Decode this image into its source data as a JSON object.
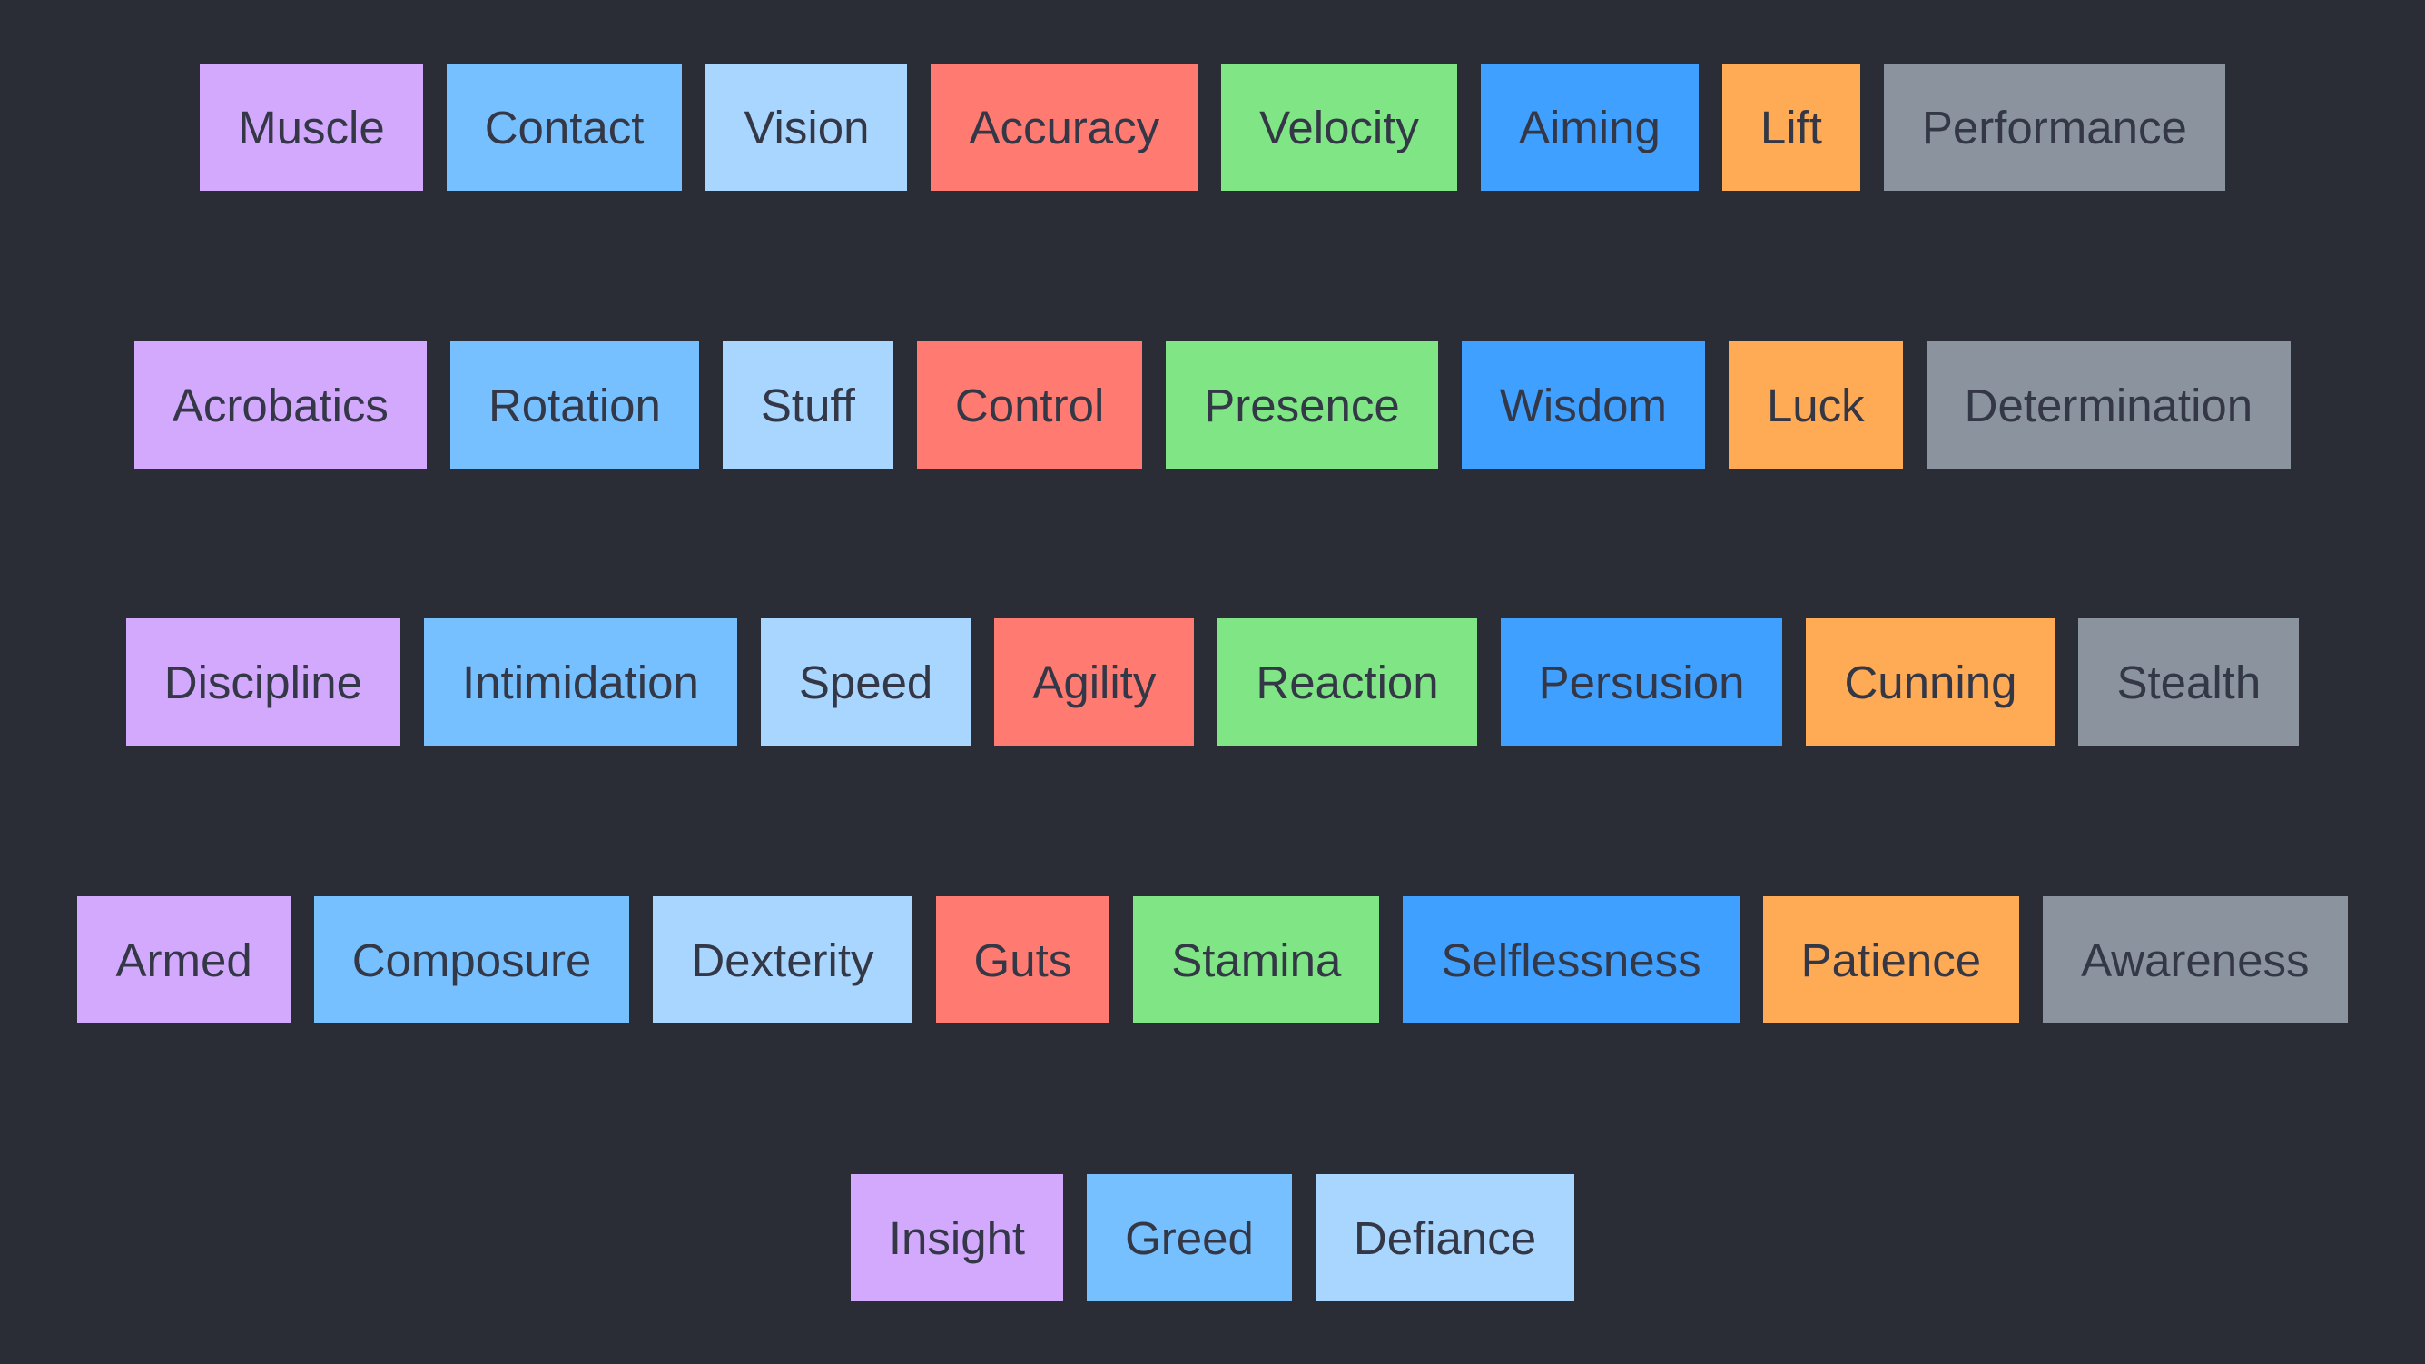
{
  "palette": {
    "background": "#2a2d36",
    "text": "#343846",
    "purple": "#d3a9fe",
    "sky": "#77c0ff",
    "pale-blue": "#a8d6ff",
    "red": "#ff7b72",
    "green": "#7fe585",
    "blue": "#40a0ff",
    "orange": "#ffaa55",
    "gray": "#8b949e"
  },
  "rows": [
    [
      {
        "label": "Muscle",
        "color": "purple"
      },
      {
        "label": "Contact",
        "color": "sky"
      },
      {
        "label": "Vision",
        "color": "pale-blue"
      },
      {
        "label": "Accuracy",
        "color": "red"
      },
      {
        "label": "Velocity",
        "color": "green"
      },
      {
        "label": "Aiming",
        "color": "blue"
      },
      {
        "label": "Lift",
        "color": "orange"
      },
      {
        "label": "Performance",
        "color": "gray"
      }
    ],
    [
      {
        "label": "Acrobatics",
        "color": "purple"
      },
      {
        "label": "Rotation",
        "color": "sky"
      },
      {
        "label": "Stuff",
        "color": "pale-blue"
      },
      {
        "label": "Control",
        "color": "red"
      },
      {
        "label": "Presence",
        "color": "green"
      },
      {
        "label": "Wisdom",
        "color": "blue"
      },
      {
        "label": "Luck",
        "color": "orange"
      },
      {
        "label": "Determination",
        "color": "gray"
      }
    ],
    [
      {
        "label": "Discipline",
        "color": "purple"
      },
      {
        "label": "Intimidation",
        "color": "sky"
      },
      {
        "label": "Speed",
        "color": "pale-blue"
      },
      {
        "label": "Agility",
        "color": "red"
      },
      {
        "label": "Reaction",
        "color": "green"
      },
      {
        "label": "Persusion",
        "color": "blue"
      },
      {
        "label": "Cunning",
        "color": "orange"
      },
      {
        "label": "Stealth",
        "color": "gray"
      }
    ],
    [
      {
        "label": "Armed",
        "color": "purple"
      },
      {
        "label": "Composure",
        "color": "sky"
      },
      {
        "label": "Dexterity",
        "color": "pale-blue"
      },
      {
        "label": "Guts",
        "color": "red"
      },
      {
        "label": "Stamina",
        "color": "green"
      },
      {
        "label": "Selflessness",
        "color": "blue"
      },
      {
        "label": "Patience",
        "color": "orange"
      },
      {
        "label": "Awareness",
        "color": "gray"
      }
    ],
    [
      {
        "label": "Insight",
        "color": "purple"
      },
      {
        "label": "Greed",
        "color": "sky"
      },
      {
        "label": "Defiance",
        "color": "pale-blue"
      }
    ]
  ]
}
